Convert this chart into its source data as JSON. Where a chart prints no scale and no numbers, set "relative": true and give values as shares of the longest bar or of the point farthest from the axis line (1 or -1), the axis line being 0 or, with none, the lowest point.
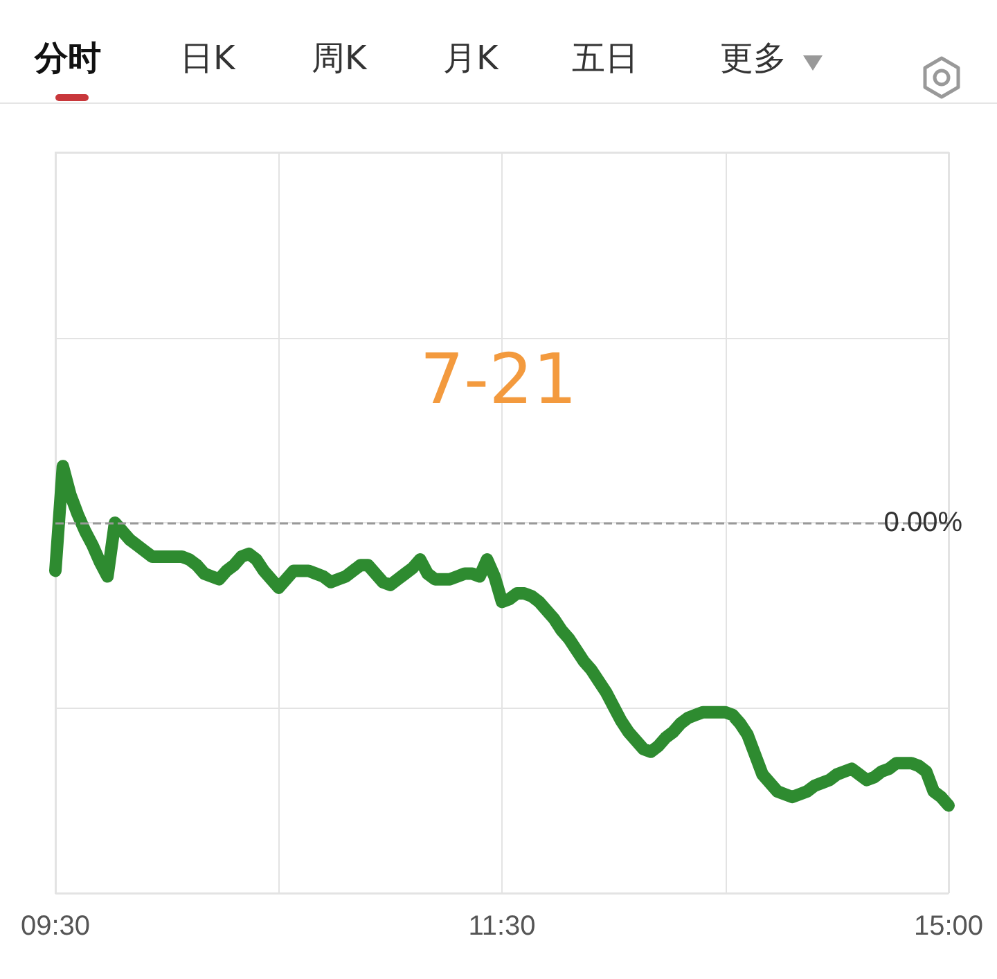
{
  "chart_data": {
    "type": "line",
    "relative": true,
    "annotations": [
      "分时",
      "日K",
      "周K",
      "月K",
      "五日",
      "更多",
      "7-21"
    ],
    "categories": [
      "09:30",
      null,
      null,
      null,
      null,
      null,
      null,
      null,
      null,
      null,
      null,
      null,
      null,
      null,
      null,
      null,
      null,
      null,
      null,
      null,
      null,
      null,
      null,
      null,
      null,
      null,
      null,
      null,
      null,
      null,
      null,
      null,
      null,
      null,
      null,
      null,
      null,
      null,
      null,
      null,
      null,
      null,
      null,
      null,
      null,
      null,
      null,
      null,
      null,
      null,
      null,
      null,
      null,
      null,
      null,
      null,
      null,
      null,
      null,
      null,
      "11:30",
      null,
      null,
      null,
      null,
      null,
      null,
      null,
      null,
      null,
      null,
      null,
      null,
      null,
      null,
      null,
      null,
      null,
      null,
      null,
      null,
      null,
      null,
      null,
      null,
      null,
      null,
      null,
      null,
      null,
      null,
      null,
      null,
      null,
      null,
      null,
      null,
      null,
      null,
      null,
      null,
      null,
      null,
      null,
      null,
      null,
      null,
      null,
      null,
      null,
      null,
      null,
      null,
      null,
      null,
      null,
      null,
      null,
      null,
      null,
      "15:00"
    ],
    "series": [
      {
        "color": "#2e8b30",
        "values": [
          -0.17,
          0.2,
          0.1,
          0.03,
          -0.03,
          -0.08,
          -0.14,
          -0.19,
          0,
          -0.03,
          -0.06,
          -0.08,
          -0.1,
          -0.12,
          -0.12,
          -0.12,
          -0.12,
          -0.12,
          -0.13,
          -0.15,
          -0.18,
          -0.19,
          -0.2,
          -0.17,
          -0.15,
          -0.12,
          -0.11,
          -0.13,
          -0.17,
          -0.2,
          -0.23,
          -0.2,
          -0.17,
          -0.17,
          -0.17,
          -0.18,
          -0.19,
          -0.21,
          -0.2,
          -0.19,
          -0.17,
          -0.15,
          -0.15,
          -0.18,
          -0.21,
          -0.22,
          -0.2,
          -0.18,
          -0.16,
          -0.13,
          -0.18,
          -0.2,
          -0.2,
          -0.2,
          -0.19,
          -0.18,
          -0.18,
          -0.19,
          -0.13,
          -0.19,
          -0.28,
          -0.27,
          -0.25,
          -0.25,
          -0.26,
          -0.28,
          -0.31,
          -0.34,
          -0.38,
          -0.41,
          -0.45,
          -0.49,
          -0.52,
          -0.56,
          -0.6,
          -0.65,
          -0.7,
          -0.74,
          -0.77,
          -0.8,
          -0.81,
          -0.79,
          -0.76,
          -0.74,
          -0.71,
          -0.69,
          -0.68,
          -0.67,
          -0.67,
          -0.67,
          -0.67,
          -0.68,
          -0.71,
          -0.75,
          -0.82,
          -0.89,
          -0.92,
          -0.95,
          -0.96,
          -0.97,
          -0.96,
          -0.95,
          -0.93,
          -0.92,
          -0.91,
          -0.89,
          -0.88,
          -0.87,
          -0.89,
          -0.91,
          -0.9,
          -0.88,
          -0.87,
          -0.85,
          -0.85,
          -0.85,
          -0.86,
          -0.88,
          -0.95,
          -0.97,
          -1
        ]
      }
    ],
    "ref_lines": [
      {
        "axis": "y",
        "value": 0,
        "label": "0.00%",
        "color": "#999999",
        "line_style": "dashed"
      }
    ],
    "grid": true,
    "line_style": "solid"
  }
}
